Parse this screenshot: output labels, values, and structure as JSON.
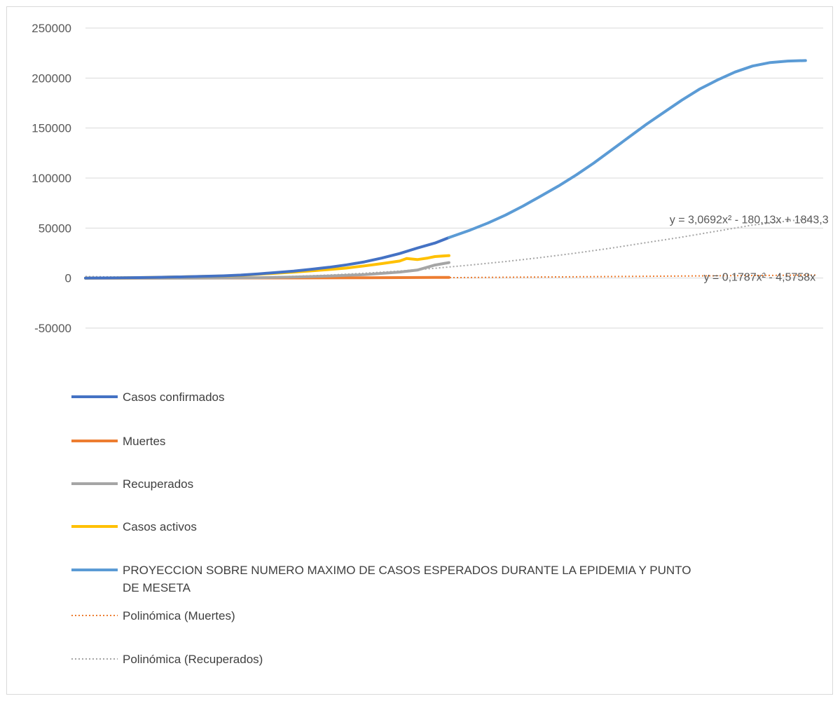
{
  "chart_data": {
    "type": "line",
    "ylim": [
      -50000,
      250000
    ],
    "yticks": [
      250000,
      200000,
      150000,
      100000,
      50000,
      0,
      -50000
    ],
    "ytick_labels": [
      "250000",
      "200000",
      "150000",
      "100000",
      "50000",
      "0",
      "-50000"
    ],
    "grid": true,
    "legend_position": "bottom",
    "x": [
      1,
      10,
      20,
      30,
      40,
      50,
      60,
      70,
      80,
      90,
      100,
      110,
      120,
      130,
      140,
      150,
      160,
      170,
      180,
      190,
      200
    ],
    "series": [
      {
        "name": "Casos confirmados",
        "color": "#4472c4",
        "style": "solid",
        "points": [
          [
            1,
            0
          ],
          [
            10,
            200
          ],
          [
            20,
            600
          ],
          [
            30,
            1300
          ],
          [
            40,
            2200
          ],
          [
            45,
            3000
          ],
          [
            50,
            4200
          ],
          [
            55,
            5600
          ],
          [
            60,
            7000
          ],
          [
            65,
            8800
          ],
          [
            70,
            10800
          ],
          [
            75,
            13200
          ],
          [
            80,
            16200
          ],
          [
            85,
            20000
          ],
          [
            90,
            24500
          ],
          [
            95,
            30000
          ],
          [
            100,
            35000
          ],
          [
            104,
            40500
          ]
        ]
      },
      {
        "name": "Muertes",
        "color": "#ed7d31",
        "style": "solid",
        "points": [
          [
            1,
            0
          ],
          [
            20,
            10
          ],
          [
            40,
            50
          ],
          [
            60,
            150
          ],
          [
            80,
            300
          ],
          [
            100,
            600
          ],
          [
            104,
            700
          ]
        ]
      },
      {
        "name": "Recuperados",
        "color": "#a5a5a5",
        "style": "solid",
        "points": [
          [
            1,
            0
          ],
          [
            30,
            0
          ],
          [
            40,
            100
          ],
          [
            50,
            400
          ],
          [
            60,
            1000
          ],
          [
            70,
            2000
          ],
          [
            80,
            3500
          ],
          [
            90,
            6000
          ],
          [
            95,
            8000
          ],
          [
            100,
            13000
          ],
          [
            104,
            15500
          ]
        ]
      },
      {
        "name": "Casos activos",
        "color": "#ffc000",
        "style": "solid",
        "points": [
          [
            1,
            0
          ],
          [
            10,
            200
          ],
          [
            20,
            600
          ],
          [
            30,
            1300
          ],
          [
            40,
            2100
          ],
          [
            45,
            2800
          ],
          [
            50,
            3800
          ],
          [
            55,
            4900
          ],
          [
            60,
            6000
          ],
          [
            65,
            7200
          ],
          [
            70,
            8500
          ],
          [
            75,
            10000
          ],
          [
            80,
            12200
          ],
          [
            85,
            14500
          ],
          [
            90,
            17000
          ],
          [
            92,
            19500
          ],
          [
            95,
            18500
          ],
          [
            98,
            20000
          ],
          [
            100,
            21500
          ],
          [
            104,
            22500
          ]
        ]
      },
      {
        "name": "PROYECCION SOBRE NUMERO MAXIMO DE CASOS ESPERADOS DURANTE LA EPIDEMIA Y PUNTO DE MESETA",
        "color": "#5b9bd5",
        "style": "solid",
        "points": [
          [
            104,
            40500
          ],
          [
            110,
            48000
          ],
          [
            115,
            55000
          ],
          [
            120,
            63000
          ],
          [
            125,
            72000
          ],
          [
            130,
            82000
          ],
          [
            135,
            92000
          ],
          [
            140,
            103000
          ],
          [
            145,
            115000
          ],
          [
            150,
            128000
          ],
          [
            155,
            141000
          ],
          [
            160,
            154000
          ],
          [
            165,
            166000
          ],
          [
            170,
            178000
          ],
          [
            175,
            189000
          ],
          [
            180,
            198000
          ],
          [
            185,
            206000
          ],
          [
            190,
            212000
          ],
          [
            195,
            215500
          ],
          [
            200,
            217000
          ],
          [
            205,
            217500
          ]
        ]
      },
      {
        "name": "Polinómica (Muertes)",
        "color": "#ed7d31",
        "style": "dotted",
        "points": [
          [
            1,
            0
          ],
          [
            50,
            100
          ],
          [
            100,
            300
          ],
          [
            150,
            1500
          ],
          [
            208,
            3000
          ]
        ]
      },
      {
        "name": "Polinómica (Recuperados)",
        "color": "#a5a5a5",
        "style": "dotted",
        "points": [
          [
            1,
            1500
          ],
          [
            20,
            600
          ],
          [
            30,
            300
          ],
          [
            40,
            300
          ],
          [
            50,
            800
          ],
          [
            60,
            1700
          ],
          [
            70,
            3000
          ],
          [
            80,
            4800
          ],
          [
            90,
            7000
          ],
          [
            100,
            9800
          ],
          [
            110,
            13000
          ],
          [
            120,
            16500
          ],
          [
            130,
            20500
          ],
          [
            140,
            25000
          ],
          [
            150,
            30000
          ],
          [
            160,
            35500
          ],
          [
            170,
            41000
          ],
          [
            180,
            47000
          ],
          [
            190,
            53000
          ],
          [
            200,
            57000
          ],
          [
            208,
            60000
          ]
        ]
      }
    ],
    "annotations": [
      {
        "text": "y = 3,0692x² - 180,13x + 1843,3",
        "x": 189,
        "y": 59000
      },
      {
        "text": "y = 0,1787x² - 4,5758x",
        "x": 192,
        "y": 1500
      }
    ],
    "legend": [
      {
        "label": "Casos confirmados",
        "color": "#4472c4",
        "style": "solid"
      },
      {
        "label": "Muertes",
        "color": "#ed7d31",
        "style": "solid"
      },
      {
        "label": "Recuperados",
        "color": "#a5a5a5",
        "style": "solid"
      },
      {
        "label": "Casos activos",
        "color": "#ffc000",
        "style": "solid"
      },
      {
        "label": "PROYECCION SOBRE NUMERO MAXIMO DE CASOS ESPERADOS DURANTE LA EPIDEMIA Y PUNTO",
        "label2": "DE MESETA",
        "color": "#5b9bd5",
        "style": "solid"
      },
      {
        "label": "Polinómica (Muertes)",
        "color": "#ed7d31",
        "style": "dotted"
      },
      {
        "label": "Polinómica (Recuperados)",
        "color": "#a5a5a5",
        "style": "dotted"
      }
    ]
  }
}
